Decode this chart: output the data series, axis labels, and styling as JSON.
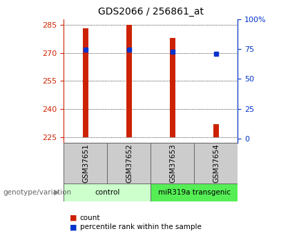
{
  "title": "GDS2066 / 256861_at",
  "samples": [
    "GSM37651",
    "GSM37652",
    "GSM37653",
    "GSM37654"
  ],
  "bar_bottom": 225,
  "bar_tops": [
    283,
    285,
    278,
    232
  ],
  "percentile_values": [
    271.5,
    271.5,
    270.5,
    269.5
  ],
  "ylim_left": [
    222,
    288
  ],
  "yticks_left": [
    225,
    240,
    255,
    270,
    285
  ],
  "ylim_right": [
    -3.33,
    100
  ],
  "yticks_right": [
    0,
    25,
    50,
    75,
    100
  ],
  "ytick_labels_right": [
    "0",
    "25",
    "50",
    "75",
    "100%"
  ],
  "bar_color": "#cc2200",
  "dot_color": "#0033cc",
  "groups": [
    {
      "label": "control",
      "samples": [
        0,
        1
      ],
      "color": "#ccffcc"
    },
    {
      "label": "miR319a transgenic",
      "samples": [
        2,
        3
      ],
      "color": "#55ee55"
    }
  ],
  "genotype_label": "genotype/variation",
  "legend_count_label": "count",
  "legend_pct_label": "percentile rank within the sample",
  "bar_width": 0.12,
  "x_positions": [
    1,
    2,
    3,
    4
  ],
  "xlim": [
    0.5,
    4.5
  ],
  "tick_color_left": "#cc2200",
  "tick_color_right": "#0033cc",
  "sample_box_color": "#cccccc",
  "fig_bg": "#ffffff"
}
